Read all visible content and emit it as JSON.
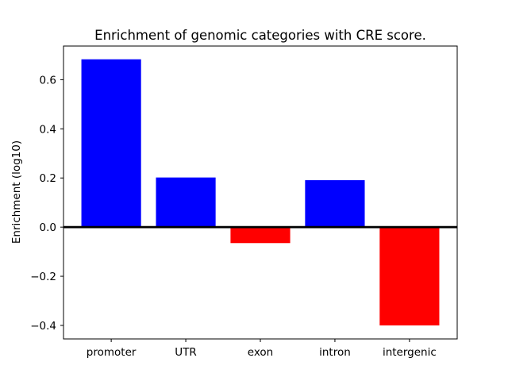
{
  "chart_data": {
    "type": "bar",
    "title": "Enrichment of genomic categories with CRE score.",
    "ylabel": "Enrichment (log10)",
    "categories": [
      "promoter",
      "UTR",
      "exon",
      "intron",
      "intergenic"
    ],
    "values": [
      0.683,
      0.202,
      -0.065,
      0.191,
      -0.4
    ],
    "bar_colors": [
      "#0000ff",
      "#0000ff",
      "#ff0000",
      "#0000ff",
      "#ff0000"
    ],
    "positive_color": "#0000ff",
    "negative_color": "#ff0000",
    "bar_width": 0.8,
    "yticks": [
      -0.4,
      -0.2,
      0.0,
      0.2,
      0.4,
      0.6
    ],
    "ytick_labels": [
      "−0.4",
      "−0.2",
      "0.0",
      "0.2",
      "0.4",
      "0.6"
    ],
    "ylim": [
      -0.455,
      0.737
    ],
    "xlim": [
      -0.64,
      4.64
    ],
    "zero_line": true,
    "grid": false,
    "legend": "none",
    "axis_color": "#000000",
    "text_color": "#000000",
    "background_color": "#ffffff"
  }
}
